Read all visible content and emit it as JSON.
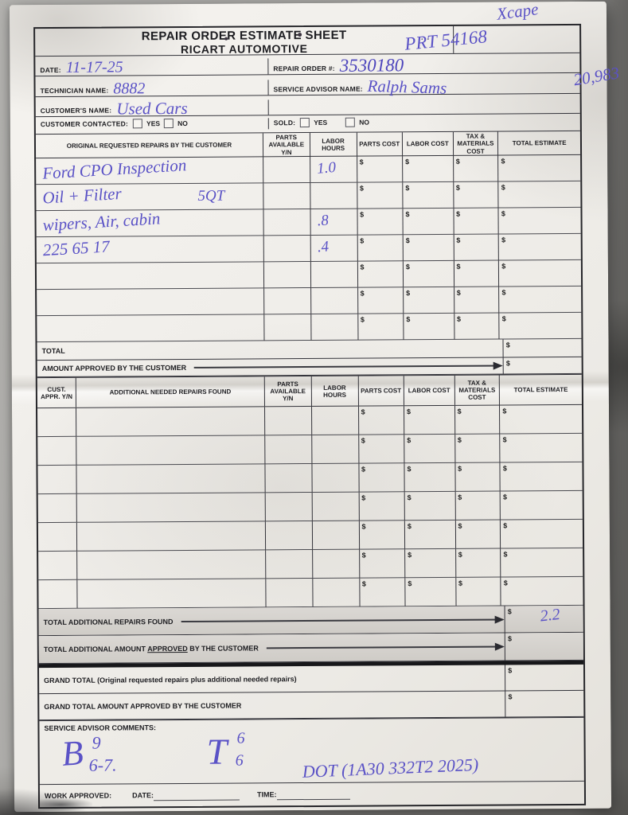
{
  "photo": {
    "background_color": "#a7a6a3",
    "paper_color": "#f2f0ec",
    "ink_color": "#5a52c6",
    "line_color": "#33333a"
  },
  "form": {
    "currency_symbol": "$",
    "title_line1": "REPAIR ORDER ESTIMATE SHEET",
    "title_line2": "RICART AUTOMOTIVE",
    "handwritten": {
      "top_note": "Xcape",
      "prt_number": "PRT 54168",
      "stray_marks": "· ·",
      "mileage": "20,983"
    },
    "info": {
      "date_label": "DATE:",
      "date_value": "11-17-25",
      "repair_order_label": "REPAIR ORDER #:",
      "repair_order_value": "3530180",
      "technician_label": "TECHNICIAN NAME:",
      "technician_value": "8882",
      "service_advisor_label": "SERVICE ADVISOR NAME:",
      "service_advisor_value": "Ralph Sams",
      "customer_label": "CUSTOMER'S NAME:",
      "customer_value": "Used Cars",
      "customer_contacted_label": "CUSTOMER CONTACTED:",
      "sold_label": "SOLD:",
      "yes_label": "YES",
      "no_label": "NO"
    },
    "table1": {
      "headers": [
        "ORIGINAL REQUESTED REPAIRS BY THE CUSTOMER",
        "PARTS AVAILABLE Y/N",
        "LABOR HOURS",
        "PARTS COST",
        "LABOR COST",
        "TAX & MATERIALS COST",
        "TOTAL ESTIMATE"
      ],
      "rows": [
        {
          "description": "Ford CPO Inspection",
          "labor_hours": "1.0"
        },
        {
          "description": "Oil + Filter",
          "note": "5QT",
          "labor_hours": ""
        },
        {
          "description": "wipers, Air, cabin",
          "labor_hours": ".8"
        },
        {
          "description": "225 65 17",
          "labor_hours": ".4"
        },
        {
          "description": "",
          "labor_hours": ""
        },
        {
          "description": "",
          "labor_hours": ""
        },
        {
          "description": "",
          "labor_hours": ""
        }
      ],
      "total_label": "TOTAL",
      "amount_approved_label": "AMOUNT APPROVED BY THE CUSTOMER"
    },
    "table2": {
      "headers": [
        "CUST. APPR. Y/N",
        "ADDITIONAL NEEDED REPAIRS FOUND",
        "PARTS AVAILABLE Y/N",
        "LABOR HOURS",
        "PARTS COST",
        "LABOR COST",
        "TAX & MATERIALS COST",
        "TOTAL ESTIMATE"
      ],
      "rows": [
        {},
        {},
        {},
        {},
        {},
        {},
        {}
      ],
      "total_additional_label": "TOTAL ADDITIONAL REPAIRS FOUND",
      "total_additional_value": "2.2",
      "total_additional_approved_prefix": "TOTAL ADDITIONAL AMOUNT ",
      "total_additional_approved_underlined": "APPROVED",
      "total_additional_approved_suffix": " BY THE CUSTOMER"
    },
    "grand_total_label": "GRAND TOTAL (Original requested repairs plus additional needed repairs)",
    "grand_total_approved_label": "GRAND TOTAL AMOUNT APPROVED BY THE CUSTOMER",
    "service_advisor_comments_label": "SERVICE ADVISOR COMMENTS:",
    "comments_handwriting": {
      "b_main": "B",
      "b_sup": "9",
      "b_sub": "6-7.",
      "t_main": "T",
      "t_sup": "6",
      "t_sub": "6",
      "dot_note": "DOT (1A30 332T2 2025)"
    },
    "footer": {
      "work_approved_label": "WORK APPROVED:",
      "date_label": "DATE:",
      "time_label": "TIME:"
    }
  }
}
